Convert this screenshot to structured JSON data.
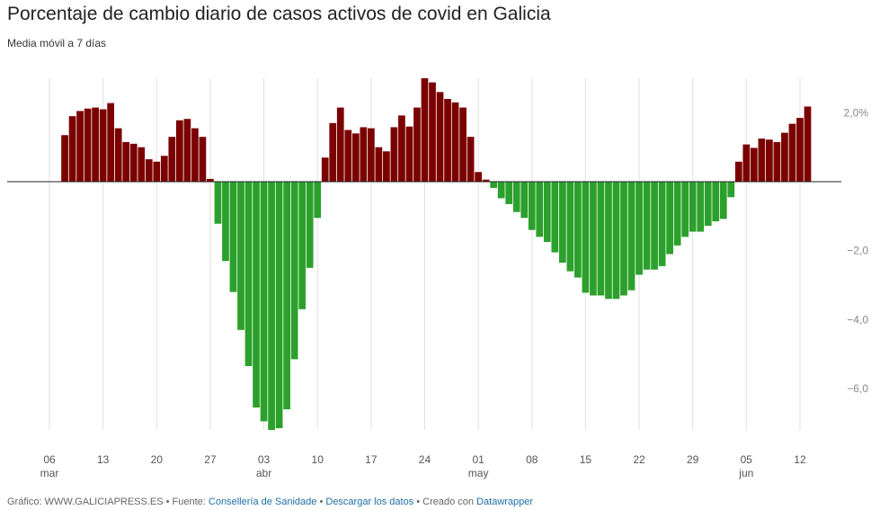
{
  "title": "Porcentaje de cambio diario de casos activos de covid en Galicia",
  "subtitle": "Media móvil a 7 días",
  "footer": {
    "prefix": "Gráfico: WWW.GALICIAPRESS.ES • Fuente: ",
    "source_link": "Consellería de Sanidade",
    "sep1": " • ",
    "download_link": "Descargar los datos",
    "sep2": " • Creado con ",
    "tool_link": "Datawrapper"
  },
  "colors": {
    "positive": "#7b0000",
    "negative": "#2ca02c",
    "grid": "#e0e0e0",
    "zero": "#222222"
  },
  "chart_data": {
    "type": "bar",
    "first_day": "2020-03-06",
    "ylim": [
      -7.2,
      3.0
    ],
    "yticks": [
      {
        "value": 2,
        "label": "2,0%"
      },
      {
        "value": -2,
        "label": "−2,0"
      },
      {
        "value": -4,
        "label": "−4,0"
      },
      {
        "value": -6,
        "label": "−6,0"
      }
    ],
    "xticks": [
      {
        "index": 0,
        "day": "06",
        "month": "mar"
      },
      {
        "index": 7,
        "day": "13",
        "month": ""
      },
      {
        "index": 14,
        "day": "20",
        "month": ""
      },
      {
        "index": 21,
        "day": "27",
        "month": ""
      },
      {
        "index": 28,
        "day": "03",
        "month": "abr"
      },
      {
        "index": 35,
        "day": "10",
        "month": ""
      },
      {
        "index": 42,
        "day": "17",
        "month": ""
      },
      {
        "index": 49,
        "day": "24",
        "month": ""
      },
      {
        "index": 56,
        "day": "01",
        "month": "may"
      },
      {
        "index": 63,
        "day": "08",
        "month": ""
      },
      {
        "index": 70,
        "day": "15",
        "month": ""
      },
      {
        "index": 77,
        "day": "22",
        "month": ""
      },
      {
        "index": 84,
        "day": "29",
        "month": ""
      },
      {
        "index": 91,
        "day": "05",
        "month": "jun"
      },
      {
        "index": 98,
        "day": "12",
        "month": ""
      }
    ],
    "values": [
      0.0,
      0.0,
      1.35,
      1.9,
      2.05,
      2.12,
      2.15,
      2.1,
      2.28,
      1.55,
      1.15,
      1.1,
      1.0,
      0.65,
      0.58,
      0.75,
      1.3,
      1.78,
      1.82,
      1.55,
      1.3,
      0.08,
      -1.22,
      -2.3,
      -3.2,
      -4.3,
      -5.35,
      -6.55,
      -6.95,
      -7.2,
      -7.15,
      -6.6,
      -5.15,
      -3.7,
      -2.5,
      -1.05,
      0.7,
      1.7,
      2.15,
      1.5,
      1.4,
      1.58,
      1.55,
      1.0,
      0.88,
      1.58,
      1.92,
      1.6,
      2.15,
      3.0,
      2.88,
      2.6,
      2.4,
      2.3,
      2.15,
      1.3,
      0.28,
      0.06,
      -0.18,
      -0.48,
      -0.65,
      -0.88,
      -1.05,
      -1.4,
      -1.6,
      -1.75,
      -2.05,
      -2.35,
      -2.6,
      -2.78,
      -3.22,
      -3.3,
      -3.3,
      -3.4,
      -3.4,
      -3.3,
      -3.15,
      -2.7,
      -2.55,
      -2.55,
      -2.45,
      -2.1,
      -1.85,
      -1.6,
      -1.45,
      -1.45,
      -1.28,
      -1.15,
      -1.08,
      -0.45,
      0.58,
      1.08,
      0.98,
      1.25,
      1.22,
      1.15,
      1.42,
      1.68,
      1.85,
      2.18
    ]
  }
}
